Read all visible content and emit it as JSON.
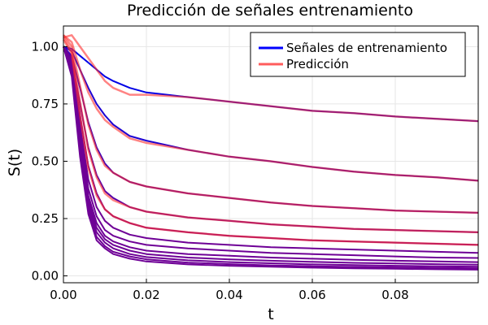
{
  "chart_data": {
    "type": "line",
    "title": "Predicción de señales entrenamiento",
    "xlabel": "t",
    "ylabel": "S(t)",
    "xlim": [
      0.0,
      0.1
    ],
    "ylim": [
      -0.03,
      1.09
    ],
    "xticks": [
      0.0,
      0.02,
      0.04,
      0.06,
      0.08
    ],
    "xtick_labels": [
      "0.00",
      "0.02",
      "0.04",
      "0.06",
      "0.08"
    ],
    "yticks": [
      0.0,
      0.25,
      0.5,
      0.75,
      1.0
    ],
    "ytick_labels": [
      "0.00",
      "0.25",
      "0.50",
      "0.75",
      "1.00"
    ],
    "grid": true,
    "legend": {
      "placement": "top-right",
      "entries": [
        {
          "label": "Señales de entrenamiento",
          "color": "#0000ff"
        },
        {
          "label": "Predicción",
          "color": "#ff5c5c"
        }
      ]
    },
    "x": [
      0.0,
      0.002,
      0.004,
      0.006,
      0.008,
      0.01,
      0.012,
      0.016,
      0.02,
      0.03,
      0.04,
      0.05,
      0.06,
      0.07,
      0.08,
      0.09,
      0.1
    ],
    "series": [
      {
        "role": "training",
        "values": [
          1.0,
          0.99,
          0.96,
          0.93,
          0.9,
          0.87,
          0.85,
          0.82,
          0.8,
          0.78,
          0.76,
          0.74,
          0.72,
          0.71,
          0.695,
          0.685,
          0.675
        ]
      },
      {
        "role": "training",
        "values": [
          1.0,
          0.98,
          0.9,
          0.82,
          0.75,
          0.7,
          0.66,
          0.61,
          0.59,
          0.55,
          0.52,
          0.5,
          0.475,
          0.455,
          0.44,
          0.43,
          0.415
        ]
      },
      {
        "role": "training",
        "values": [
          1.0,
          0.96,
          0.82,
          0.67,
          0.56,
          0.49,
          0.45,
          0.41,
          0.39,
          0.36,
          0.34,
          0.32,
          0.305,
          0.295,
          0.285,
          0.28,
          0.275
        ]
      },
      {
        "role": "training",
        "values": [
          1.0,
          0.95,
          0.75,
          0.56,
          0.44,
          0.37,
          0.34,
          0.3,
          0.28,
          0.255,
          0.24,
          0.225,
          0.215,
          0.205,
          0.2,
          0.195,
          0.19
        ]
      },
      {
        "role": "training",
        "values": [
          1.0,
          0.94,
          0.7,
          0.48,
          0.36,
          0.29,
          0.26,
          0.23,
          0.21,
          0.19,
          0.175,
          0.165,
          0.155,
          0.15,
          0.145,
          0.14,
          0.135
        ]
      },
      {
        "role": "training",
        "values": [
          1.0,
          0.93,
          0.66,
          0.42,
          0.3,
          0.24,
          0.21,
          0.18,
          0.165,
          0.145,
          0.135,
          0.125,
          0.12,
          0.115,
          0.11,
          0.105,
          0.1
        ]
      },
      {
        "role": "training",
        "values": [
          1.0,
          0.92,
          0.63,
          0.38,
          0.26,
          0.2,
          0.175,
          0.15,
          0.135,
          0.12,
          0.11,
          0.1,
          0.095,
          0.09,
          0.085,
          0.08,
          0.078
        ]
      },
      {
        "role": "training",
        "values": [
          1.0,
          0.91,
          0.6,
          0.35,
          0.23,
          0.175,
          0.15,
          0.125,
          0.11,
          0.095,
          0.088,
          0.08,
          0.075,
          0.07,
          0.066,
          0.063,
          0.06
        ]
      },
      {
        "role": "training",
        "values": [
          1.0,
          0.9,
          0.58,
          0.33,
          0.21,
          0.16,
          0.135,
          0.11,
          0.095,
          0.08,
          0.072,
          0.066,
          0.061,
          0.057,
          0.054,
          0.051,
          0.049
        ]
      },
      {
        "role": "training",
        "values": [
          1.0,
          0.89,
          0.56,
          0.31,
          0.19,
          0.145,
          0.12,
          0.095,
          0.082,
          0.068,
          0.06,
          0.055,
          0.05,
          0.047,
          0.044,
          0.042,
          0.04
        ]
      },
      {
        "role": "training",
        "values": [
          1.0,
          0.88,
          0.54,
          0.29,
          0.17,
          0.13,
          0.105,
          0.085,
          0.072,
          0.058,
          0.051,
          0.046,
          0.042,
          0.039,
          0.037,
          0.035,
          0.033
        ]
      },
      {
        "role": "training",
        "values": [
          1.0,
          0.87,
          0.52,
          0.27,
          0.155,
          0.12,
          0.095,
          0.075,
          0.063,
          0.05,
          0.044,
          0.04,
          0.036,
          0.033,
          0.031,
          0.029,
          0.027
        ]
      },
      {
        "role": "prediction",
        "values": [
          1.04,
          1.05,
          1.0,
          0.95,
          0.9,
          0.85,
          0.82,
          0.79,
          0.79,
          0.78,
          0.76,
          0.74,
          0.72,
          0.71,
          0.695,
          0.685,
          0.675
        ]
      },
      {
        "role": "prediction",
        "values": [
          1.05,
          1.02,
          0.9,
          0.8,
          0.73,
          0.68,
          0.65,
          0.6,
          0.58,
          0.55,
          0.52,
          0.5,
          0.475,
          0.455,
          0.44,
          0.43,
          0.415
        ]
      },
      {
        "role": "prediction",
        "values": [
          1.05,
          1.0,
          0.83,
          0.66,
          0.55,
          0.48,
          0.45,
          0.41,
          0.39,
          0.36,
          0.34,
          0.32,
          0.305,
          0.295,
          0.285,
          0.28,
          0.275
        ]
      },
      {
        "role": "prediction",
        "values": [
          1.04,
          0.98,
          0.76,
          0.55,
          0.43,
          0.36,
          0.33,
          0.3,
          0.28,
          0.255,
          0.24,
          0.225,
          0.215,
          0.205,
          0.2,
          0.195,
          0.19
        ]
      },
      {
        "role": "prediction",
        "values": [
          1.03,
          0.97,
          0.7,
          0.47,
          0.35,
          0.29,
          0.26,
          0.23,
          0.21,
          0.19,
          0.175,
          0.165,
          0.155,
          0.15,
          0.145,
          0.14,
          0.135
        ]
      }
    ]
  }
}
